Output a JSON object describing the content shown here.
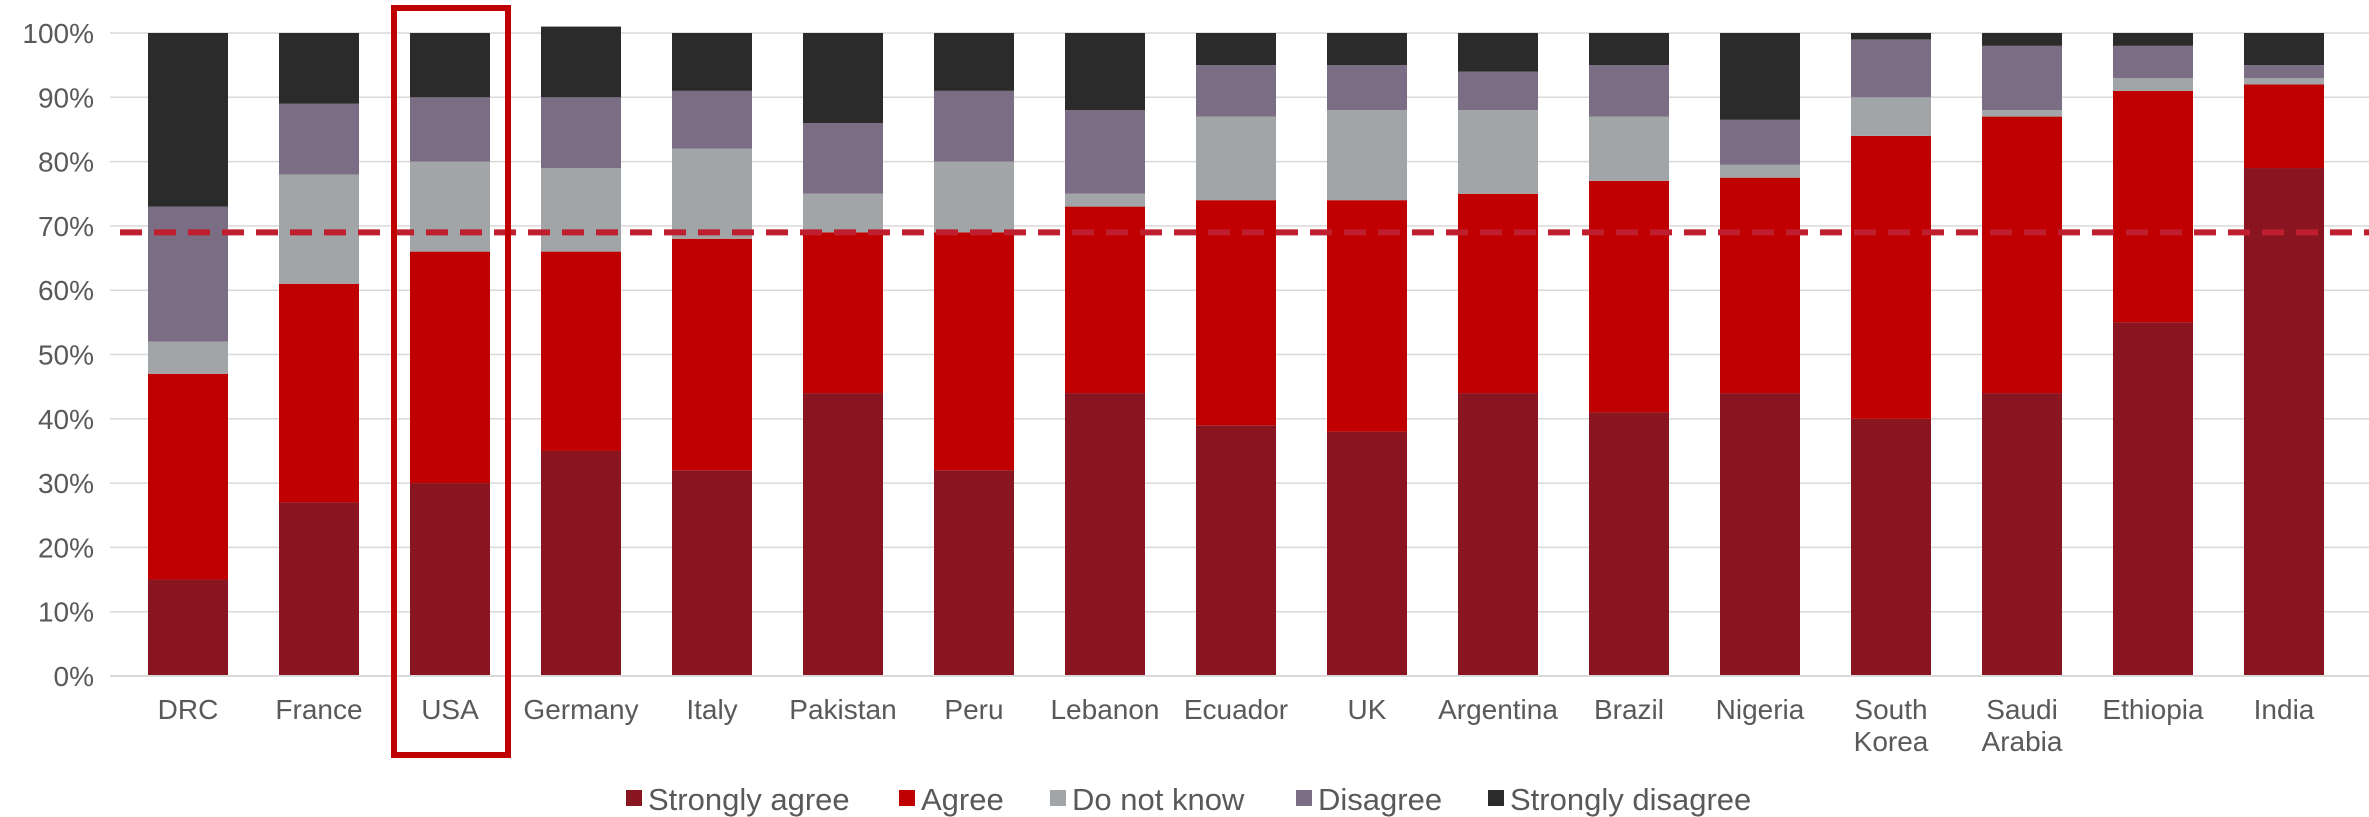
{
  "chart_data": {
    "type": "bar",
    "stacked": true,
    "normalized": true,
    "categories": [
      [
        "DRC"
      ],
      [
        "France"
      ],
      [
        "USA"
      ],
      [
        "Germany"
      ],
      [
        "Italy"
      ],
      [
        "Pakistan"
      ],
      [
        "Peru"
      ],
      [
        "Lebanon"
      ],
      [
        "Ecuador"
      ],
      [
        "UK"
      ],
      [
        "Argentina"
      ],
      [
        "Brazil"
      ],
      [
        "Nigeria"
      ],
      [
        "South",
        "Korea"
      ],
      [
        "Saudi",
        "Arabia"
      ],
      [
        "Ethiopia"
      ],
      [
        "India"
      ]
    ],
    "series": [
      {
        "name": "Strongly agree",
        "color": "#891520",
        "values": [
          15,
          27,
          30,
          35,
          32,
          44,
          32,
          44,
          39,
          38,
          44,
          41,
          44,
          40,
          44,
          55,
          79
        ]
      },
      {
        "name": "Agree",
        "color": "#C00000",
        "values": [
          32,
          34,
          36,
          31,
          36,
          25,
          37,
          29,
          35,
          36,
          31,
          36,
          33.5,
          44,
          43,
          36,
          13
        ]
      },
      {
        "name": "Do not know",
        "color": "#A2A5A8",
        "values": [
          5,
          17,
          14,
          13,
          14,
          6,
          11,
          2,
          13,
          14,
          13,
          10,
          2,
          6,
          1,
          2,
          1
        ]
      },
      {
        "name": "Disagree",
        "color": "#7B6E84",
        "values": [
          21,
          11,
          10,
          11,
          9,
          11,
          11,
          13,
          8,
          7,
          6,
          8,
          7,
          9,
          10,
          5,
          2
        ]
      },
      {
        "name": "Strongly disagree",
        "color": "#2B2B2B",
        "values": [
          27,
          11,
          10,
          11,
          9,
          14,
          9,
          12,
          5,
          5,
          6,
          5,
          13.5,
          1,
          2,
          2,
          5
        ]
      }
    ],
    "yticks": [
      "0%",
      "10%",
      "20%",
      "30%",
      "40%",
      "50%",
      "60%",
      "70%",
      "80%",
      "90%",
      "100%"
    ],
    "ylim": [
      0,
      100
    ],
    "reference_line": {
      "value": 69,
      "color": "#BE1E2D",
      "style": "dashed"
    },
    "highlight": {
      "category_index": 2,
      "color": "#C00000"
    },
    "grid": true,
    "legend_position": "bottom"
  }
}
